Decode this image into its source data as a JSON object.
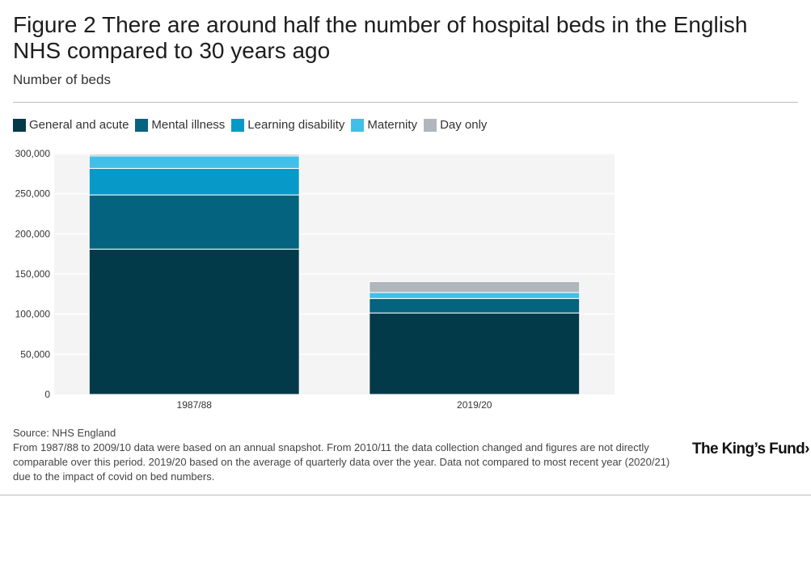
{
  "header": {
    "title": "Figure 2 There are around half the number of hospital beds in the English NHS compared to 30 years ago",
    "subtitle": "Number of beds"
  },
  "footer": {
    "source": "Source: NHS England",
    "note": "From 1987/88 to 2009/10 data were based on an annual snapshot. From 2010/11 the data collection changed and figures are not directly comparable over this period. 2019/20 based on the average of quarterly data over the year. Data not compared to most recent year (2020/21) due to the impact of covid on bed numbers.",
    "logo": "The King’s Fund›"
  },
  "colors": {
    "general": "#023a4a",
    "mental": "#04637f",
    "learning": "#0799c8",
    "maternity": "#40c0e8",
    "dayonly": "#b0b6bc",
    "plot_bg": "#f4f4f4",
    "grid": "#ffffff"
  },
  "chart_data": {
    "type": "bar",
    "stacked": true,
    "categories": [
      "1987/88",
      "2019/20"
    ],
    "series": [
      {
        "name": "General and acute",
        "color_key": "general",
        "values": [
          181000,
          101500
        ]
      },
      {
        "name": "Mental illness",
        "color_key": "mental",
        "values": [
          67500,
          18000
        ]
      },
      {
        "name": "Learning disability",
        "color_key": "learning",
        "values": [
          33000,
          0
        ]
      },
      {
        "name": "Maternity",
        "color_key": "maternity",
        "values": [
          15500,
          7500
        ]
      },
      {
        "name": "Day only",
        "color_key": "dayonly",
        "values": [
          2000,
          13500
        ]
      }
    ],
    "ylim": [
      0,
      300000
    ],
    "yticks": [
      0,
      50000,
      100000,
      150000,
      200000,
      250000,
      300000
    ],
    "ytick_labels": [
      "0",
      "50,000",
      "100,000",
      "150,000",
      "200,000",
      "250,000",
      "300,000"
    ],
    "xlabel": "",
    "ylabel": "",
    "grid": true,
    "legend_position": "top-left"
  }
}
